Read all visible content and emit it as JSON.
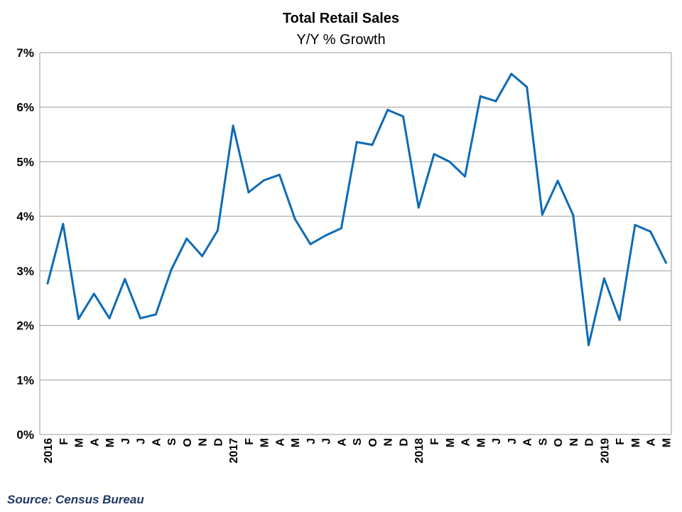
{
  "chart_data": {
    "type": "line",
    "title": "Total Retail Sales",
    "subtitle": "Y/Y % Growth",
    "source": "Source: Census Bureau",
    "ylim": [
      0,
      7
    ],
    "yticks": [
      "0%",
      "1%",
      "2%",
      "3%",
      "4%",
      "5%",
      "6%",
      "7%"
    ],
    "grid": true,
    "categories": [
      "2016",
      "F",
      "M",
      "A",
      "M",
      "J",
      "J",
      "A",
      "S",
      "O",
      "N",
      "D",
      "2017",
      "F",
      "M",
      "A",
      "M",
      "J",
      "J",
      "A",
      "S",
      "O",
      "N",
      "D",
      "2018",
      "F",
      "M",
      "A",
      "M",
      "J",
      "J",
      "A",
      "S",
      "O",
      "N",
      "D",
      "2019",
      "F",
      "M",
      "A",
      "M"
    ],
    "series": [
      {
        "color": "#0e6bb5",
        "values": [
          2.77,
          3.86,
          2.12,
          2.58,
          2.13,
          2.85,
          2.13,
          2.2,
          3.02,
          3.59,
          3.27,
          3.74,
          5.66,
          4.44,
          4.66,
          4.76,
          3.95,
          3.49,
          3.65,
          3.78,
          5.36,
          5.31,
          5.95,
          5.83,
          4.16,
          5.14,
          5.0,
          4.73,
          6.2,
          6.11,
          6.61,
          6.37,
          4.03,
          4.65,
          4.02,
          1.64,
          2.86,
          2.1,
          3.84,
          3.72,
          3.15
        ]
      }
    ]
  }
}
